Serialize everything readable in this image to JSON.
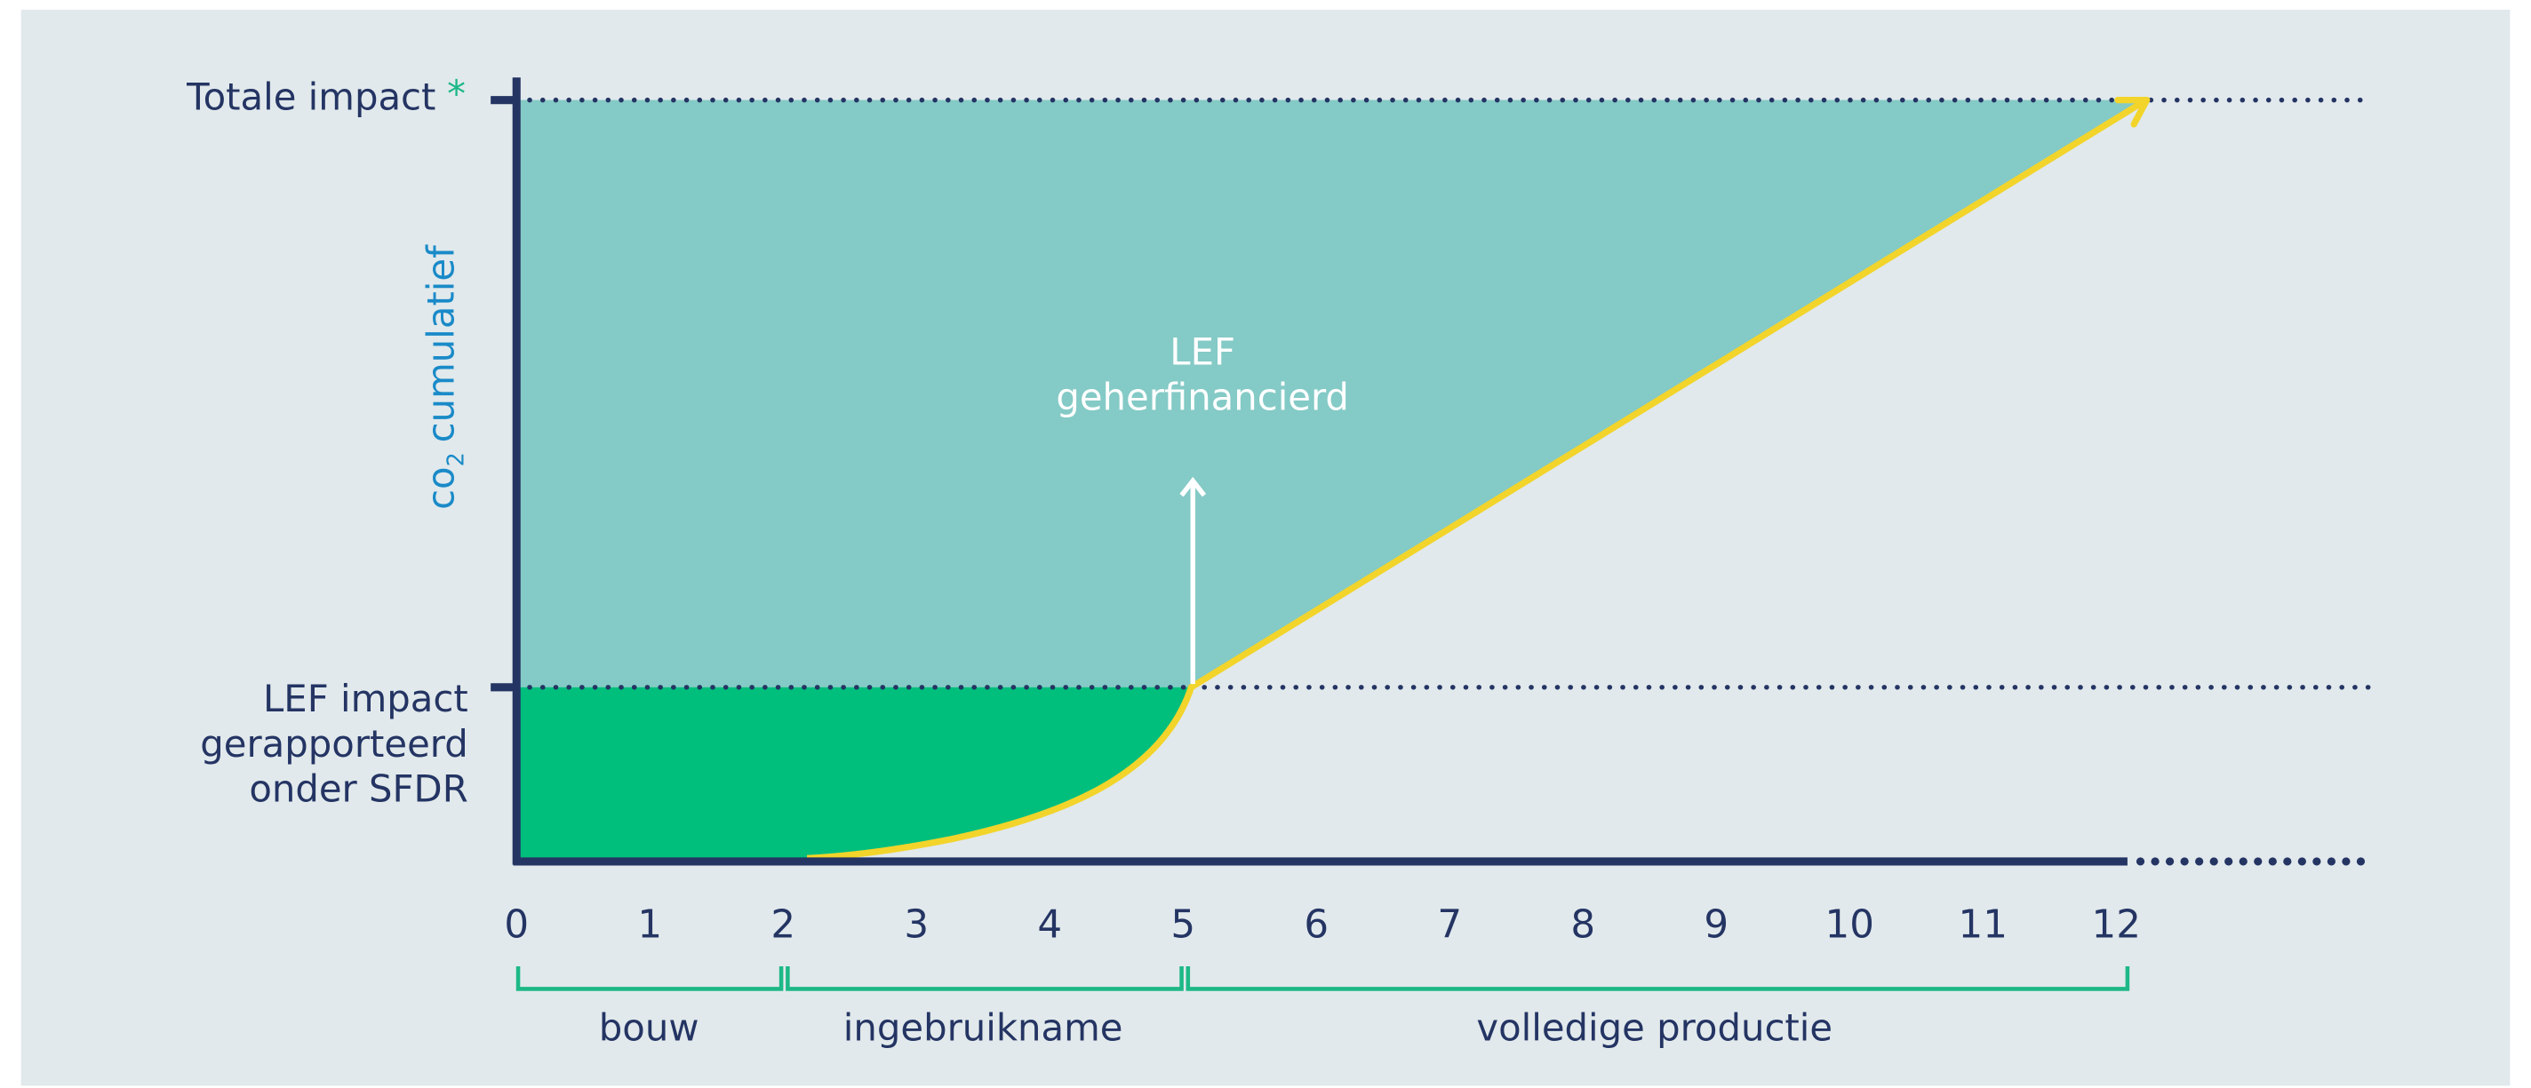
{
  "y_axis_label": {
    "main": "co",
    "subscript": "2",
    "rest": "cumulatief"
  },
  "top_label": {
    "text": "Totale impact",
    "marker": "*"
  },
  "lef_label": [
    "LEF impact",
    "gerapporteerd",
    "onder SFDR"
  ],
  "annotation": [
    "LEF",
    "geherfinancierd"
  ],
  "x_ticks": [
    0,
    1,
    2,
    3,
    4,
    5,
    6,
    7,
    8,
    9,
    10,
    11,
    12
  ],
  "phases": [
    "bouw",
    "ingebruikname",
    "volledige productie"
  ]
}
